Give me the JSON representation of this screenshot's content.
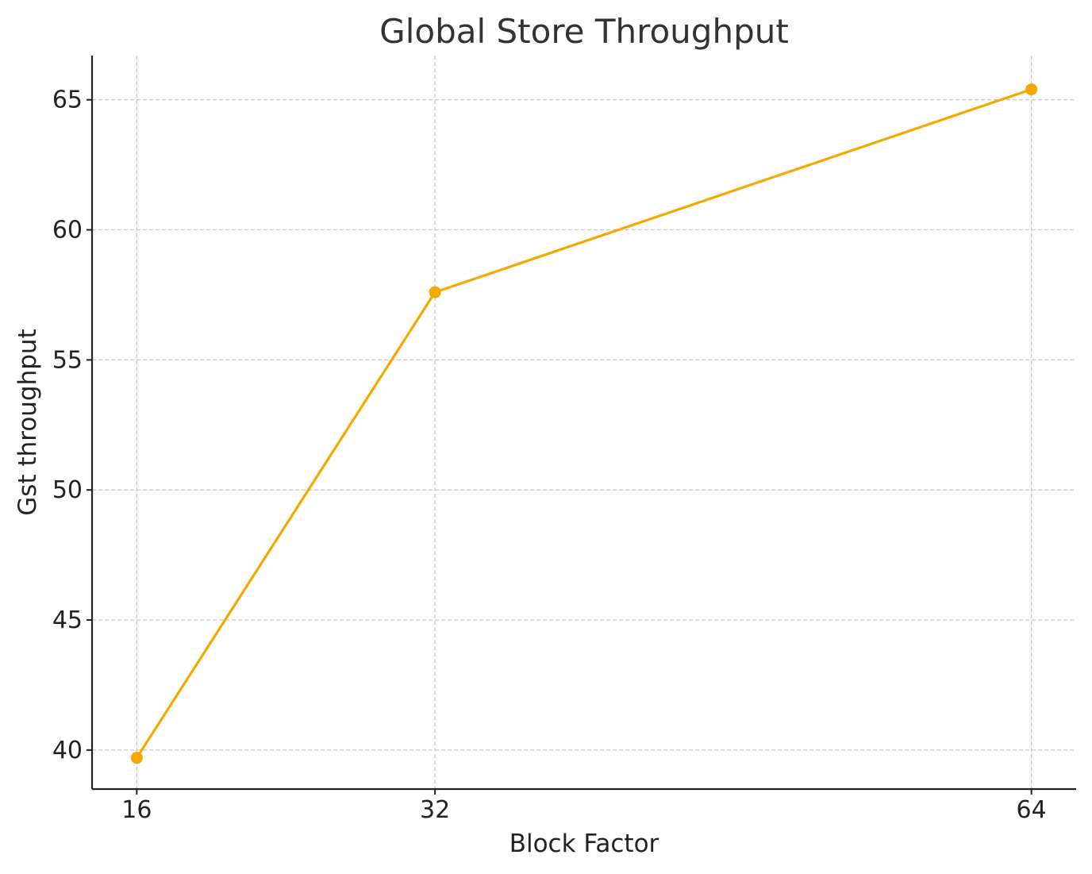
{
  "chart_data": {
    "type": "line",
    "title": "Global Store Throughput",
    "xlabel": "Block Factor",
    "ylabel": "Gst throughput",
    "x": [
      16,
      32,
      64
    ],
    "x_tick_labels": [
      "16",
      "32",
      "64"
    ],
    "series": [
      {
        "values": [
          39.7,
          57.6,
          65.4
        ],
        "color": "#f5a800",
        "marker": "circle"
      }
    ],
    "xlim": [
      13.6,
      66.4
    ],
    "ylim": [
      38.5,
      66.7
    ],
    "yticks": [
      40,
      45,
      50,
      55,
      60,
      65
    ],
    "y_tick_labels": [
      "40",
      "45",
      "50",
      "55",
      "60",
      "65"
    ],
    "grid": true,
    "legend": "none"
  }
}
